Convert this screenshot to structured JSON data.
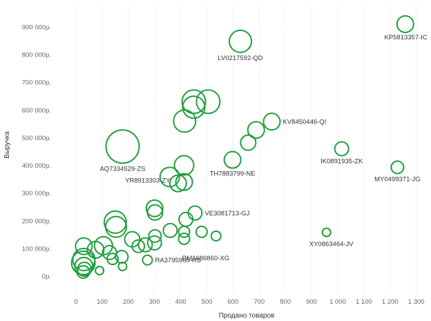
{
  "chart_data": {
    "type": "scatter",
    "title": "",
    "xlabel": "Продано товаров",
    "ylabel": "Выручка",
    "xlim": [
      -80,
      1330
    ],
    "ylim": [
      -60000,
      960000
    ],
    "x_ticks": [
      0,
      100,
      200,
      300,
      400,
      500,
      600,
      700,
      800,
      900,
      1000,
      1100,
      1200,
      1300
    ],
    "x_tick_labels": [
      "0",
      "100",
      "200",
      "300",
      "400",
      "500",
      "600",
      "700",
      "800",
      "900",
      "1 000",
      "1 100",
      "1 200",
      "1 300"
    ],
    "y_ticks": [
      0,
      100000,
      200000,
      300000,
      400000,
      500000,
      600000,
      700000,
      800000,
      900000
    ],
    "y_tick_labels": [
      "0р.",
      "100 000р.",
      "200 000р.",
      "300 000р.",
      "400 000р.",
      "500 000р.",
      "600 000р.",
      "700 000р.",
      "800 000р.",
      "900 000р."
    ],
    "grid": "vertical-dotted",
    "color": "#1e9e3a",
    "points": [
      {
        "x": 1258,
        "y": 910000,
        "size": 12,
        "label": "KP5813357-IC"
      },
      {
        "x": 628,
        "y": 848000,
        "size": 16,
        "label": "LV0217592-QD"
      },
      {
        "x": 748,
        "y": 558000,
        "size": 12,
        "label": "KV8450446-QI"
      },
      {
        "x": 1015,
        "y": 460000,
        "size": 10,
        "label": "IK0891935-ZK"
      },
      {
        "x": 1228,
        "y": 393000,
        "size": 9,
        "label": "MY0499371-JG"
      },
      {
        "x": 178,
        "y": 468000,
        "size": 24,
        "label": "AQ7334529-ZS"
      },
      {
        "x": 598,
        "y": 420000,
        "size": 12,
        "label": "TH7883799-NE"
      },
      {
        "x": 413,
        "y": 340000,
        "size": 12,
        "label": "YR8913303-ZY"
      },
      {
        "x": 455,
        "y": 228000,
        "size": 10,
        "label": "VE3081713-GJ"
      },
      {
        "x": 957,
        "y": 158000,
        "size": 6,
        "label": "XY0863464-JV"
      },
      {
        "x": 413,
        "y": 135000,
        "size": 8,
        "label": "RM1686860-XG"
      },
      {
        "x": 273,
        "y": 58000,
        "size": 7,
        "label": "RA3795965-RS"
      },
      {
        "x": 450,
        "y": 630000,
        "size": 17,
        "label": ""
      },
      {
        "x": 505,
        "y": 630000,
        "size": 17,
        "label": ""
      },
      {
        "x": 450,
        "y": 610000,
        "size": 16,
        "label": ""
      },
      {
        "x": 415,
        "y": 560000,
        "size": 16,
        "label": ""
      },
      {
        "x": 688,
        "y": 528000,
        "size": 12,
        "label": ""
      },
      {
        "x": 658,
        "y": 482000,
        "size": 11,
        "label": ""
      },
      {
        "x": 413,
        "y": 400000,
        "size": 14,
        "label": ""
      },
      {
        "x": 358,
        "y": 358000,
        "size": 14,
        "label": ""
      },
      {
        "x": 390,
        "y": 335000,
        "size": 12,
        "label": ""
      },
      {
        "x": 300,
        "y": 245000,
        "size": 12,
        "label": ""
      },
      {
        "x": 302,
        "y": 230000,
        "size": 11,
        "label": ""
      },
      {
        "x": 420,
        "y": 205000,
        "size": 10,
        "label": ""
      },
      {
        "x": 150,
        "y": 195000,
        "size": 16,
        "label": ""
      },
      {
        "x": 153,
        "y": 178000,
        "size": 15,
        "label": ""
      },
      {
        "x": 360,
        "y": 165000,
        "size": 10,
        "label": ""
      },
      {
        "x": 480,
        "y": 160000,
        "size": 8,
        "label": ""
      },
      {
        "x": 535,
        "y": 145000,
        "size": 7,
        "label": ""
      },
      {
        "x": 302,
        "y": 145000,
        "size": 9,
        "label": ""
      },
      {
        "x": 215,
        "y": 133000,
        "size": 11,
        "label": ""
      },
      {
        "x": 413,
        "y": 160000,
        "size": 8,
        "label": ""
      },
      {
        "x": 300,
        "y": 120000,
        "size": 10,
        "label": ""
      },
      {
        "x": 265,
        "y": 113000,
        "size": 10,
        "label": ""
      },
      {
        "x": 238,
        "y": 108000,
        "size": 9,
        "label": ""
      },
      {
        "x": 105,
        "y": 110000,
        "size": 13,
        "label": ""
      },
      {
        "x": 128,
        "y": 85000,
        "size": 10,
        "label": ""
      },
      {
        "x": 175,
        "y": 70000,
        "size": 9,
        "label": ""
      },
      {
        "x": 140,
        "y": 62000,
        "size": 8,
        "label": ""
      },
      {
        "x": 30,
        "y": 108000,
        "size": 12,
        "label": ""
      },
      {
        "x": 75,
        "y": 95000,
        "size": 12,
        "label": ""
      },
      {
        "x": 30,
        "y": 60000,
        "size": 16,
        "label": ""
      },
      {
        "x": 28,
        "y": 48000,
        "size": 17,
        "label": ""
      },
      {
        "x": 30,
        "y": 35000,
        "size": 13,
        "label": ""
      },
      {
        "x": 32,
        "y": 25000,
        "size": 10,
        "label": ""
      },
      {
        "x": 28,
        "y": 15000,
        "size": 9,
        "label": ""
      },
      {
        "x": 90,
        "y": 20000,
        "size": 6,
        "label": ""
      },
      {
        "x": 178,
        "y": 35000,
        "size": 6,
        "label": ""
      }
    ]
  }
}
